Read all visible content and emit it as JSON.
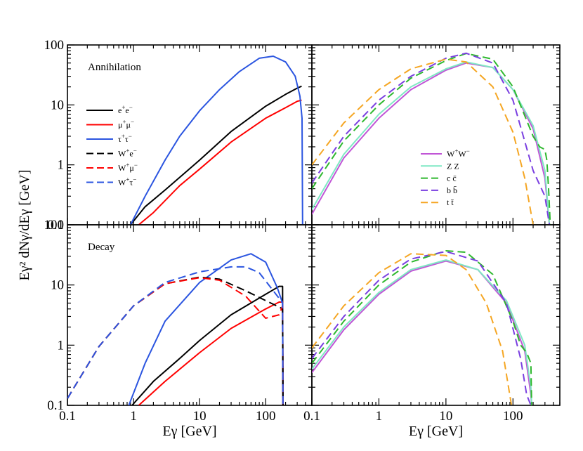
{
  "chart_data": [
    {
      "type": "line",
      "panel": "annihilation-leptons",
      "label": "Annihilation",
      "xlim": [
        0.1,
        500
      ],
      "ylim": [
        0.1,
        100
      ],
      "xscale": "log",
      "yscale": "log",
      "series": [
        {
          "name": "e+e-",
          "legend_main": "e",
          "sup1": "+",
          "second": "e",
          "sup2": "−",
          "color": "#000000",
          "dash": false,
          "x": [
            0.9,
            1.5,
            3,
            10,
            30,
            100,
            200,
            300,
            350
          ],
          "y": [
            0.1,
            0.2,
            0.38,
            1.2,
            3.6,
            9.5,
            15,
            19,
            20.5
          ]
        },
        {
          "name": "μ+μ-",
          "legend_main": "μ",
          "sup1": "+",
          "second": "μ",
          "sup2": "−",
          "color": "#ff0000",
          "dash": false,
          "x": [
            1.2,
            2,
            5,
            10,
            30,
            100,
            200,
            300,
            350
          ],
          "y": [
            0.1,
            0.16,
            0.45,
            0.85,
            2.4,
            6,
            9,
            11.5,
            12
          ]
        },
        {
          "name": "τ+τ-",
          "legend_main": "τ",
          "sup1": "+",
          "second": "τ",
          "sup2": "−",
          "color": "#2b55e0",
          "dash": false,
          "x": [
            0.9,
            1.5,
            3,
            5,
            10,
            20,
            40,
            80,
            130,
            200,
            280,
            330,
            355,
            362
          ],
          "y": [
            0.1,
            0.3,
            1.2,
            3,
            8,
            18,
            36,
            60,
            65,
            52,
            30,
            14,
            6,
            0.1
          ]
        },
        {
          "name": "W+e-",
          "legend_main": "W",
          "sup1": "+",
          "second": "e",
          "sup2": "−",
          "color": "#000000",
          "dash": true,
          "x": [],
          "y": []
        },
        {
          "name": "W+μ-",
          "legend_main": "W",
          "sup1": "+",
          "second": "μ",
          "sup2": "−",
          "color": "#ff0000",
          "dash": true,
          "x": [],
          "y": []
        },
        {
          "name": "W+τ-",
          "legend_main": "W",
          "sup1": "+",
          "second": "τ",
          "sup2": "−",
          "color": "#2b55e0",
          "dash": true,
          "x": [],
          "y": []
        }
      ]
    },
    {
      "type": "line",
      "panel": "annihilation-hadrons",
      "xlim": [
        0.1,
        500
      ],
      "ylim": [
        0.1,
        100
      ],
      "xscale": "log",
      "yscale": "log",
      "series": [
        {
          "name": "W+W-",
          "legend_main": "W",
          "sup1": "+",
          "second": "W",
          "sup2": "−",
          "color": "#c156d6",
          "dash": false,
          "x": [
            0.1,
            0.3,
            1,
            3,
            10,
            20,
            50,
            100,
            200,
            300,
            350
          ],
          "y": [
            0.15,
            1.3,
            6,
            18,
            38,
            50,
            42,
            18,
            4,
            0.6,
            0.1
          ]
        },
        {
          "name": "Z Z",
          "legend_main": "Z Z",
          "color": "#7fe8c4",
          "dash": false,
          "x": [
            0.1,
            0.3,
            1,
            3,
            10,
            20,
            50,
            100,
            200,
            300,
            350
          ],
          "y": [
            0.18,
            1.5,
            7,
            20,
            40,
            52,
            42,
            18,
            4.5,
            0.8,
            0.1
          ]
        },
        {
          "name": "c c̄",
          "legend_main": "c c̄",
          "color": "#2eb82e",
          "dash": true,
          "x": [
            0.1,
            0.3,
            1,
            3,
            10,
            20,
            50,
            100,
            200,
            250,
            300,
            320,
            340,
            360
          ],
          "y": [
            0.4,
            2.5,
            10,
            28,
            55,
            72,
            58,
            20,
            3,
            2,
            1.8,
            1.2,
            0.4,
            0.1
          ]
        },
        {
          "name": "b b̄",
          "legend_main": "b b̄",
          "color": "#7a3fe0",
          "dash": true,
          "x": [
            0.1,
            0.3,
            1,
            3,
            10,
            20,
            50,
            100,
            200,
            300,
            350
          ],
          "y": [
            0.5,
            3,
            12,
            30,
            60,
            73,
            50,
            12,
            0.8,
            0.3,
            0.1
          ]
        },
        {
          "name": "t t̄",
          "legend_main": "t t̄",
          "color": "#f5a623",
          "dash": true,
          "x": [
            0.1,
            0.3,
            1,
            3,
            10,
            20,
            50,
            100,
            150,
            200
          ],
          "y": [
            1,
            5,
            18,
            40,
            58,
            52,
            20,
            3.5,
            0.6,
            0.1
          ]
        }
      ]
    },
    {
      "type": "line",
      "panel": "decay-leptons",
      "label": "Decay",
      "xlim": [
        0.1,
        500
      ],
      "ylim": [
        0.1,
        100
      ],
      "xscale": "log",
      "yscale": "log",
      "series": [
        {
          "name": "e+e-",
          "color": "#000000",
          "dash": false,
          "x": [
            0.95,
            2,
            5,
            10,
            30,
            100,
            160,
            180,
            183
          ],
          "y": [
            0.1,
            0.25,
            0.6,
            1.2,
            3.2,
            7,
            9.5,
            9.5,
            0.1
          ]
        },
        {
          "name": "μ+μ-",
          "color": "#ff0000",
          "dash": false,
          "x": [
            1.2,
            3,
            10,
            30,
            100,
            160,
            180,
            183
          ],
          "y": [
            0.1,
            0.25,
            0.75,
            1.9,
            4,
            5.2,
            5.2,
            0.1
          ]
        },
        {
          "name": "τ+τ-",
          "color": "#2b55e0",
          "dash": false,
          "x": [
            0.85,
            1.5,
            3,
            10,
            30,
            60,
            100,
            150,
            180,
            183
          ],
          "y": [
            0.1,
            0.5,
            2.5,
            11,
            26,
            33,
            24,
            9,
            5,
            0.1
          ]
        },
        {
          "name": "W+e-",
          "color": "#000000",
          "dash": true,
          "x": [
            0.1,
            0.3,
            1,
            3,
            10,
            20,
            50,
            100,
            160,
            180,
            183
          ],
          "y": [
            0.13,
            0.95,
            4.5,
            10.5,
            13.5,
            12.5,
            8,
            5.5,
            4.3,
            4,
            0.1
          ]
        },
        {
          "name": "W+μ-",
          "color": "#ff0000",
          "dash": true,
          "x": [
            0.1,
            0.3,
            1,
            3,
            10,
            20,
            50,
            100,
            160,
            180,
            183
          ],
          "y": [
            0.13,
            0.95,
            4.5,
            10.5,
            13.2,
            12,
            6.5,
            2.8,
            3.2,
            4.5,
            0.1
          ]
        },
        {
          "name": "W+τ-",
          "color": "#2b55e0",
          "dash": true,
          "x": [
            0.1,
            0.3,
            1,
            3,
            10,
            30,
            50,
            80,
            120,
            160,
            180,
            183
          ],
          "y": [
            0.13,
            0.95,
            4.5,
            11,
            16.5,
            20,
            20,
            16,
            9,
            6,
            5,
            0.1
          ]
        }
      ]
    },
    {
      "type": "line",
      "panel": "decay-hadrons",
      "xlim": [
        0.1,
        500
      ],
      "ylim": [
        0.1,
        100
      ],
      "xscale": "log",
      "yscale": "log",
      "series": [
        {
          "name": "W+W-",
          "color": "#c156d6",
          "dash": false,
          "x": [
            0.1,
            0.3,
            1,
            3,
            10,
            30,
            80,
            150,
            185,
            190
          ],
          "y": [
            0.35,
            1.8,
            7,
            17,
            25,
            18,
            5,
            0.8,
            0.15,
            0.1
          ]
        },
        {
          "name": "Z Z",
          "color": "#7fe8c4",
          "dash": false,
          "x": [
            0.1,
            0.3,
            1,
            3,
            10,
            30,
            80,
            150,
            185,
            190
          ],
          "y": [
            0.4,
            2,
            7.5,
            18,
            26,
            18,
            5.5,
            1,
            0.2,
            0.1
          ]
        },
        {
          "name": "c c̄",
          "color": "#2eb82e",
          "dash": true,
          "x": [
            0.1,
            0.3,
            1,
            3,
            10,
            20,
            50,
            100,
            130,
            160,
            185,
            190
          ],
          "y": [
            0.5,
            2.5,
            10,
            24,
            37,
            35,
            15,
            2.5,
            1,
            0.75,
            0.5,
            0.1
          ]
        },
        {
          "name": "b b̄",
          "color": "#7a3fe0",
          "dash": true,
          "x": [
            0.1,
            0.3,
            1,
            3,
            10,
            30,
            80,
            130,
            160,
            185
          ],
          "y": [
            0.6,
            3,
            12,
            27,
            36,
            25,
            5,
            0.6,
            0.15,
            0.1
          ]
        },
        {
          "name": "t t̄",
          "color": "#f5a623",
          "dash": true,
          "x": [
            0.1,
            0.3,
            1,
            3,
            10,
            20,
            40,
            70,
            95
          ],
          "y": [
            0.9,
            4.5,
            16,
            33,
            31,
            18,
            5,
            0.8,
            0.1
          ]
        }
      ]
    }
  ],
  "axes": {
    "ylabel": "Eγ² dNγ/dEγ [GeV]",
    "xlabel": "Eγ [GeV]",
    "xtick_labels": [
      "0.1",
      "1",
      "10",
      "100"
    ],
    "ytick_labels": [
      "0.1",
      "1",
      "10",
      "100"
    ]
  },
  "labels": {
    "annihilation": "Annihilation",
    "decay": "Decay"
  }
}
